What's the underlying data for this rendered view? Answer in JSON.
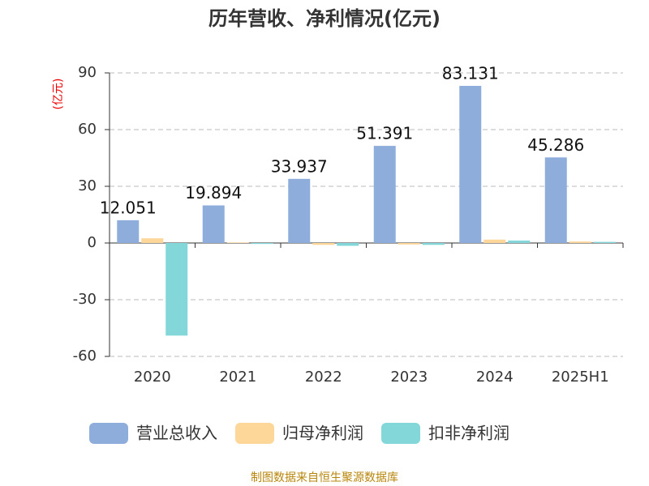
{
  "chart_data": {
    "type": "bar",
    "title": "历年营收、净利情况(亿元)",
    "y_label": "(亿元)",
    "categories": [
      "2020",
      "2021",
      "2022",
      "2023",
      "2024",
      "2025H1"
    ],
    "series": [
      {
        "name": "营业总收入",
        "color": "#8eaddb",
        "values": [
          12.051,
          19.894,
          33.937,
          51.391,
          83.131,
          45.286
        ]
      },
      {
        "name": "归母净利润",
        "color": "#fdd799",
        "values": [
          2.5,
          0.3,
          -1.0,
          -0.8,
          1.8,
          0.8
        ]
      },
      {
        "name": "扣非净利润",
        "color": "#84d7d8",
        "values": [
          -49,
          -0.5,
          -1.5,
          -1.0,
          1.3,
          0.6
        ]
      }
    ],
    "ylim": [
      -60,
      90
    ],
    "yticks": [
      -60,
      -30,
      0,
      30,
      60,
      90
    ],
    "grid": true,
    "legend": "bottom",
    "source": "制图数据来自恒生聚源数据库"
  }
}
